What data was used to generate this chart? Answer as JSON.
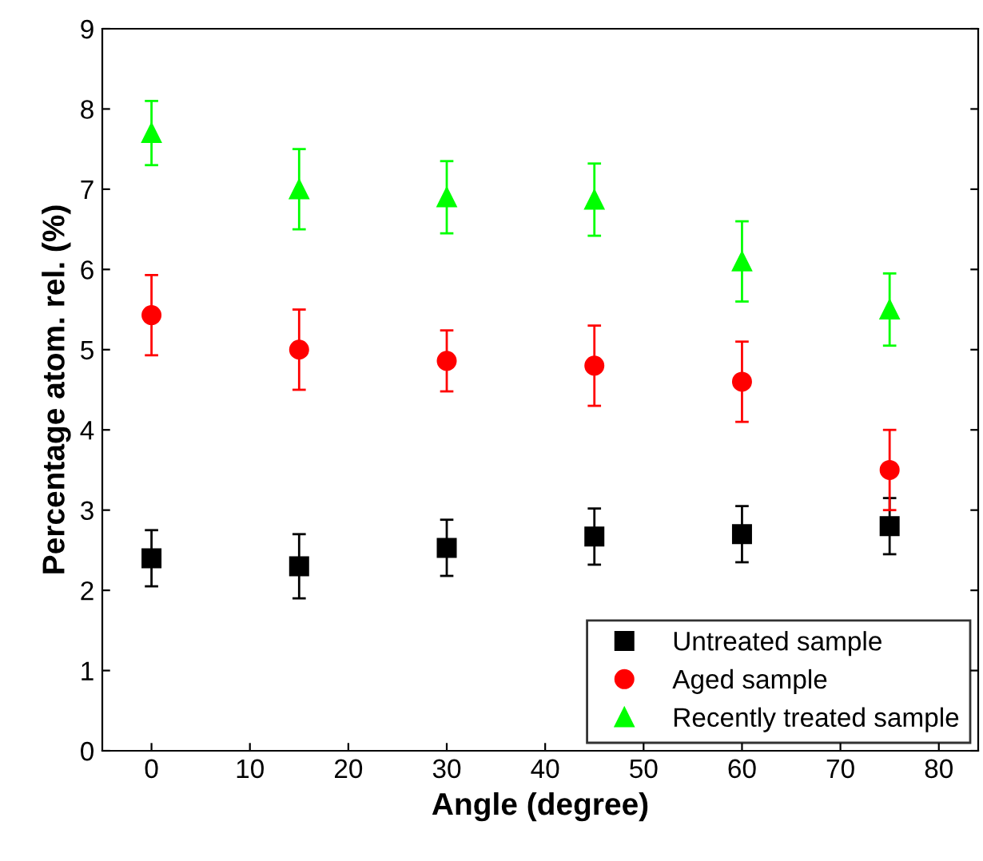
{
  "chart_data": {
    "type": "scatter",
    "xlabel": "Angle (degree)",
    "ylabel": "Percentage atom. rel. (%)",
    "xlim": [
      -5,
      84
    ],
    "xticks": [
      0,
      10,
      20,
      30,
      40,
      50,
      60,
      70,
      80
    ],
    "ylim": [
      0,
      9
    ],
    "yticks": [
      0,
      1,
      2,
      3,
      4,
      5,
      6,
      7,
      8,
      9
    ],
    "x": [
      0,
      15,
      30,
      45,
      60,
      75
    ],
    "series": [
      {
        "name": "Untreated sample",
        "color": "#000000",
        "marker": "square",
        "values": [
          2.4,
          2.3,
          2.53,
          2.67,
          2.7,
          2.8
        ],
        "errors": [
          0.35,
          0.4,
          0.35,
          0.35,
          0.35,
          0.35
        ]
      },
      {
        "name": "Aged sample",
        "color": "#ff0000",
        "marker": "circle",
        "values": [
          5.43,
          5.0,
          4.86,
          4.8,
          4.6,
          3.5
        ],
        "errors": [
          0.5,
          0.5,
          0.38,
          0.5,
          0.5,
          0.5
        ]
      },
      {
        "name": "Recently treated sample",
        "color": "#00ff00",
        "marker": "triangle",
        "values": [
          7.7,
          7.0,
          6.9,
          6.87,
          6.1,
          5.5
        ],
        "errors": [
          0.4,
          0.5,
          0.45,
          0.45,
          0.5,
          0.45
        ]
      }
    ],
    "grid": false,
    "legend": "bottom right"
  }
}
